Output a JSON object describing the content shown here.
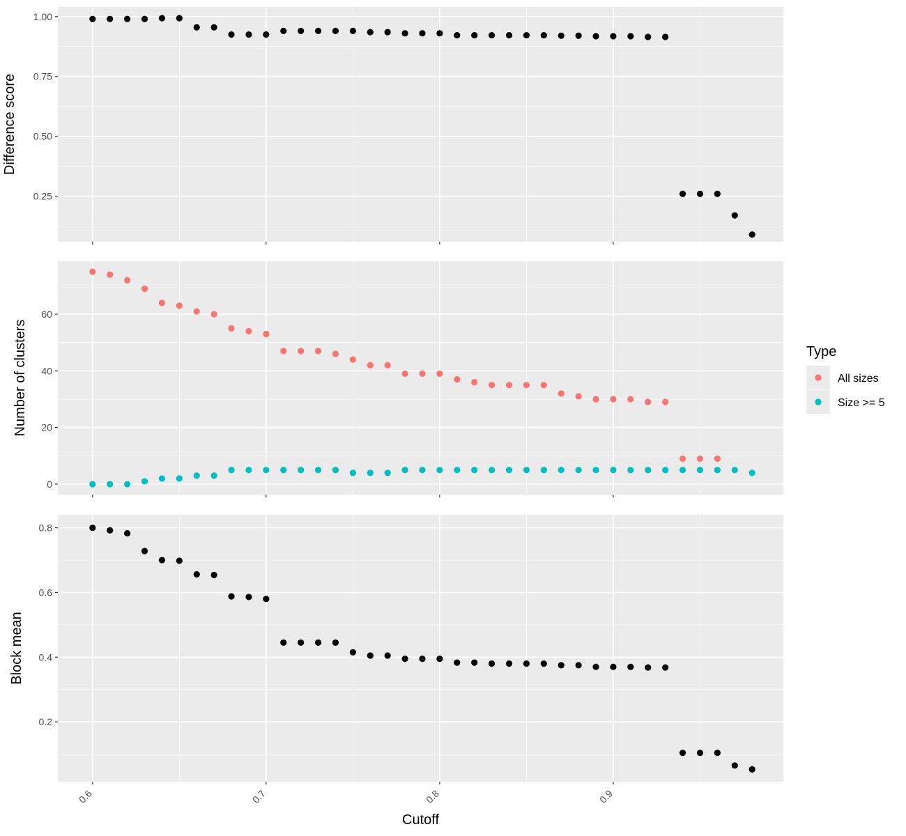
{
  "chart_data": {
    "type": "scatter",
    "xlabel": "Cutoff",
    "x_ticks": [
      "0.6",
      "0.7",
      "0.8",
      "0.9"
    ],
    "xlim": [
      0.58,
      0.998
    ],
    "legend": {
      "title": "Type",
      "placement": "right",
      "entries": [
        {
          "label": "All sizes",
          "color": "#F8766D"
        },
        {
          "label": "Size >= 5",
          "color": "#00BFC4"
        }
      ]
    },
    "colors": {
      "panel_bg": "#EBEBEB",
      "grid": "#FFFFFF",
      "point_default": "#000000"
    },
    "x": [
      0.6,
      0.61,
      0.62,
      0.63,
      0.64,
      0.65,
      0.66,
      0.67,
      0.68,
      0.69,
      0.7,
      0.71,
      0.72,
      0.73,
      0.74,
      0.75,
      0.76,
      0.77,
      0.78,
      0.79,
      0.8,
      0.81,
      0.82,
      0.83,
      0.84,
      0.85,
      0.86,
      0.87,
      0.88,
      0.89,
      0.9,
      0.91,
      0.92,
      0.93,
      0.94,
      0.95,
      0.96,
      0.97,
      0.98
    ],
    "panels": [
      {
        "ylabel": "Difference score",
        "ylim": [
          0.06,
          1.04
        ],
        "y_ticks": [
          0.25,
          0.5,
          0.75,
          1.0
        ],
        "y_tick_labels": [
          "0.25",
          "0.50",
          "0.75",
          "1.00"
        ],
        "series": [
          {
            "color": "#000000",
            "values": [
              0.99,
              0.99,
              0.99,
              0.99,
              0.993,
              0.993,
              0.955,
              0.955,
              0.925,
              0.925,
              0.925,
              0.94,
              0.94,
              0.94,
              0.94,
              0.94,
              0.935,
              0.935,
              0.93,
              0.93,
              0.93,
              0.922,
              0.922,
              0.922,
              0.922,
              0.922,
              0.922,
              0.92,
              0.92,
              0.918,
              0.918,
              0.918,
              0.915,
              0.915,
              0.26,
              0.26,
              0.26,
              0.17,
              0.09
            ]
          }
        ]
      },
      {
        "ylabel": "Number of clusters",
        "ylim": [
          -3.7,
          78.7
        ],
        "y_ticks": [
          0,
          20,
          40,
          60
        ],
        "y_tick_labels": [
          "0",
          "20",
          "40",
          "60"
        ],
        "series": [
          {
            "name": "All sizes",
            "color": "#F8766D",
            "values": [
              75,
              74,
              72,
              69,
              64,
              63,
              61,
              60,
              55,
              54,
              53,
              47,
              47,
              47,
              46,
              44,
              42,
              42,
              39,
              39,
              39,
              37,
              36,
              35,
              35,
              35,
              35,
              32,
              31,
              30,
              30,
              30,
              29,
              29,
              9,
              9,
              9,
              null,
              null
            ]
          },
          {
            "name": "Size >= 5",
            "color": "#00BFC4",
            "values": [
              0,
              0,
              0,
              1,
              2,
              2,
              3,
              3,
              5,
              5,
              5,
              5,
              5,
              5,
              5,
              4,
              4,
              4,
              5,
              5,
              5,
              5,
              5,
              5,
              5,
              5,
              5,
              5,
              5,
              5,
              5,
              5,
              5,
              5,
              5,
              5,
              5,
              5,
              4
            ]
          }
        ]
      },
      {
        "ylabel": "Block mean",
        "ylim": [
          0.015,
          0.84
        ],
        "y_ticks": [
          0.2,
          0.4,
          0.6,
          0.8
        ],
        "y_tick_labels": [
          "0.2",
          "0.4",
          "0.6",
          "0.8"
        ],
        "series": [
          {
            "color": "#000000",
            "values": [
              0.8,
              0.792,
              0.783,
              0.728,
              0.7,
              0.698,
              0.656,
              0.654,
              0.588,
              0.586,
              0.58,
              0.445,
              0.445,
              0.445,
              0.445,
              0.415,
              0.405,
              0.405,
              0.395,
              0.395,
              0.395,
              0.383,
              0.383,
              0.38,
              0.38,
              0.38,
              0.38,
              0.375,
              0.375,
              0.37,
              0.37,
              0.37,
              0.368,
              0.368,
              0.104,
              0.104,
              0.104,
              0.065,
              0.053
            ]
          }
        ]
      }
    ]
  }
}
